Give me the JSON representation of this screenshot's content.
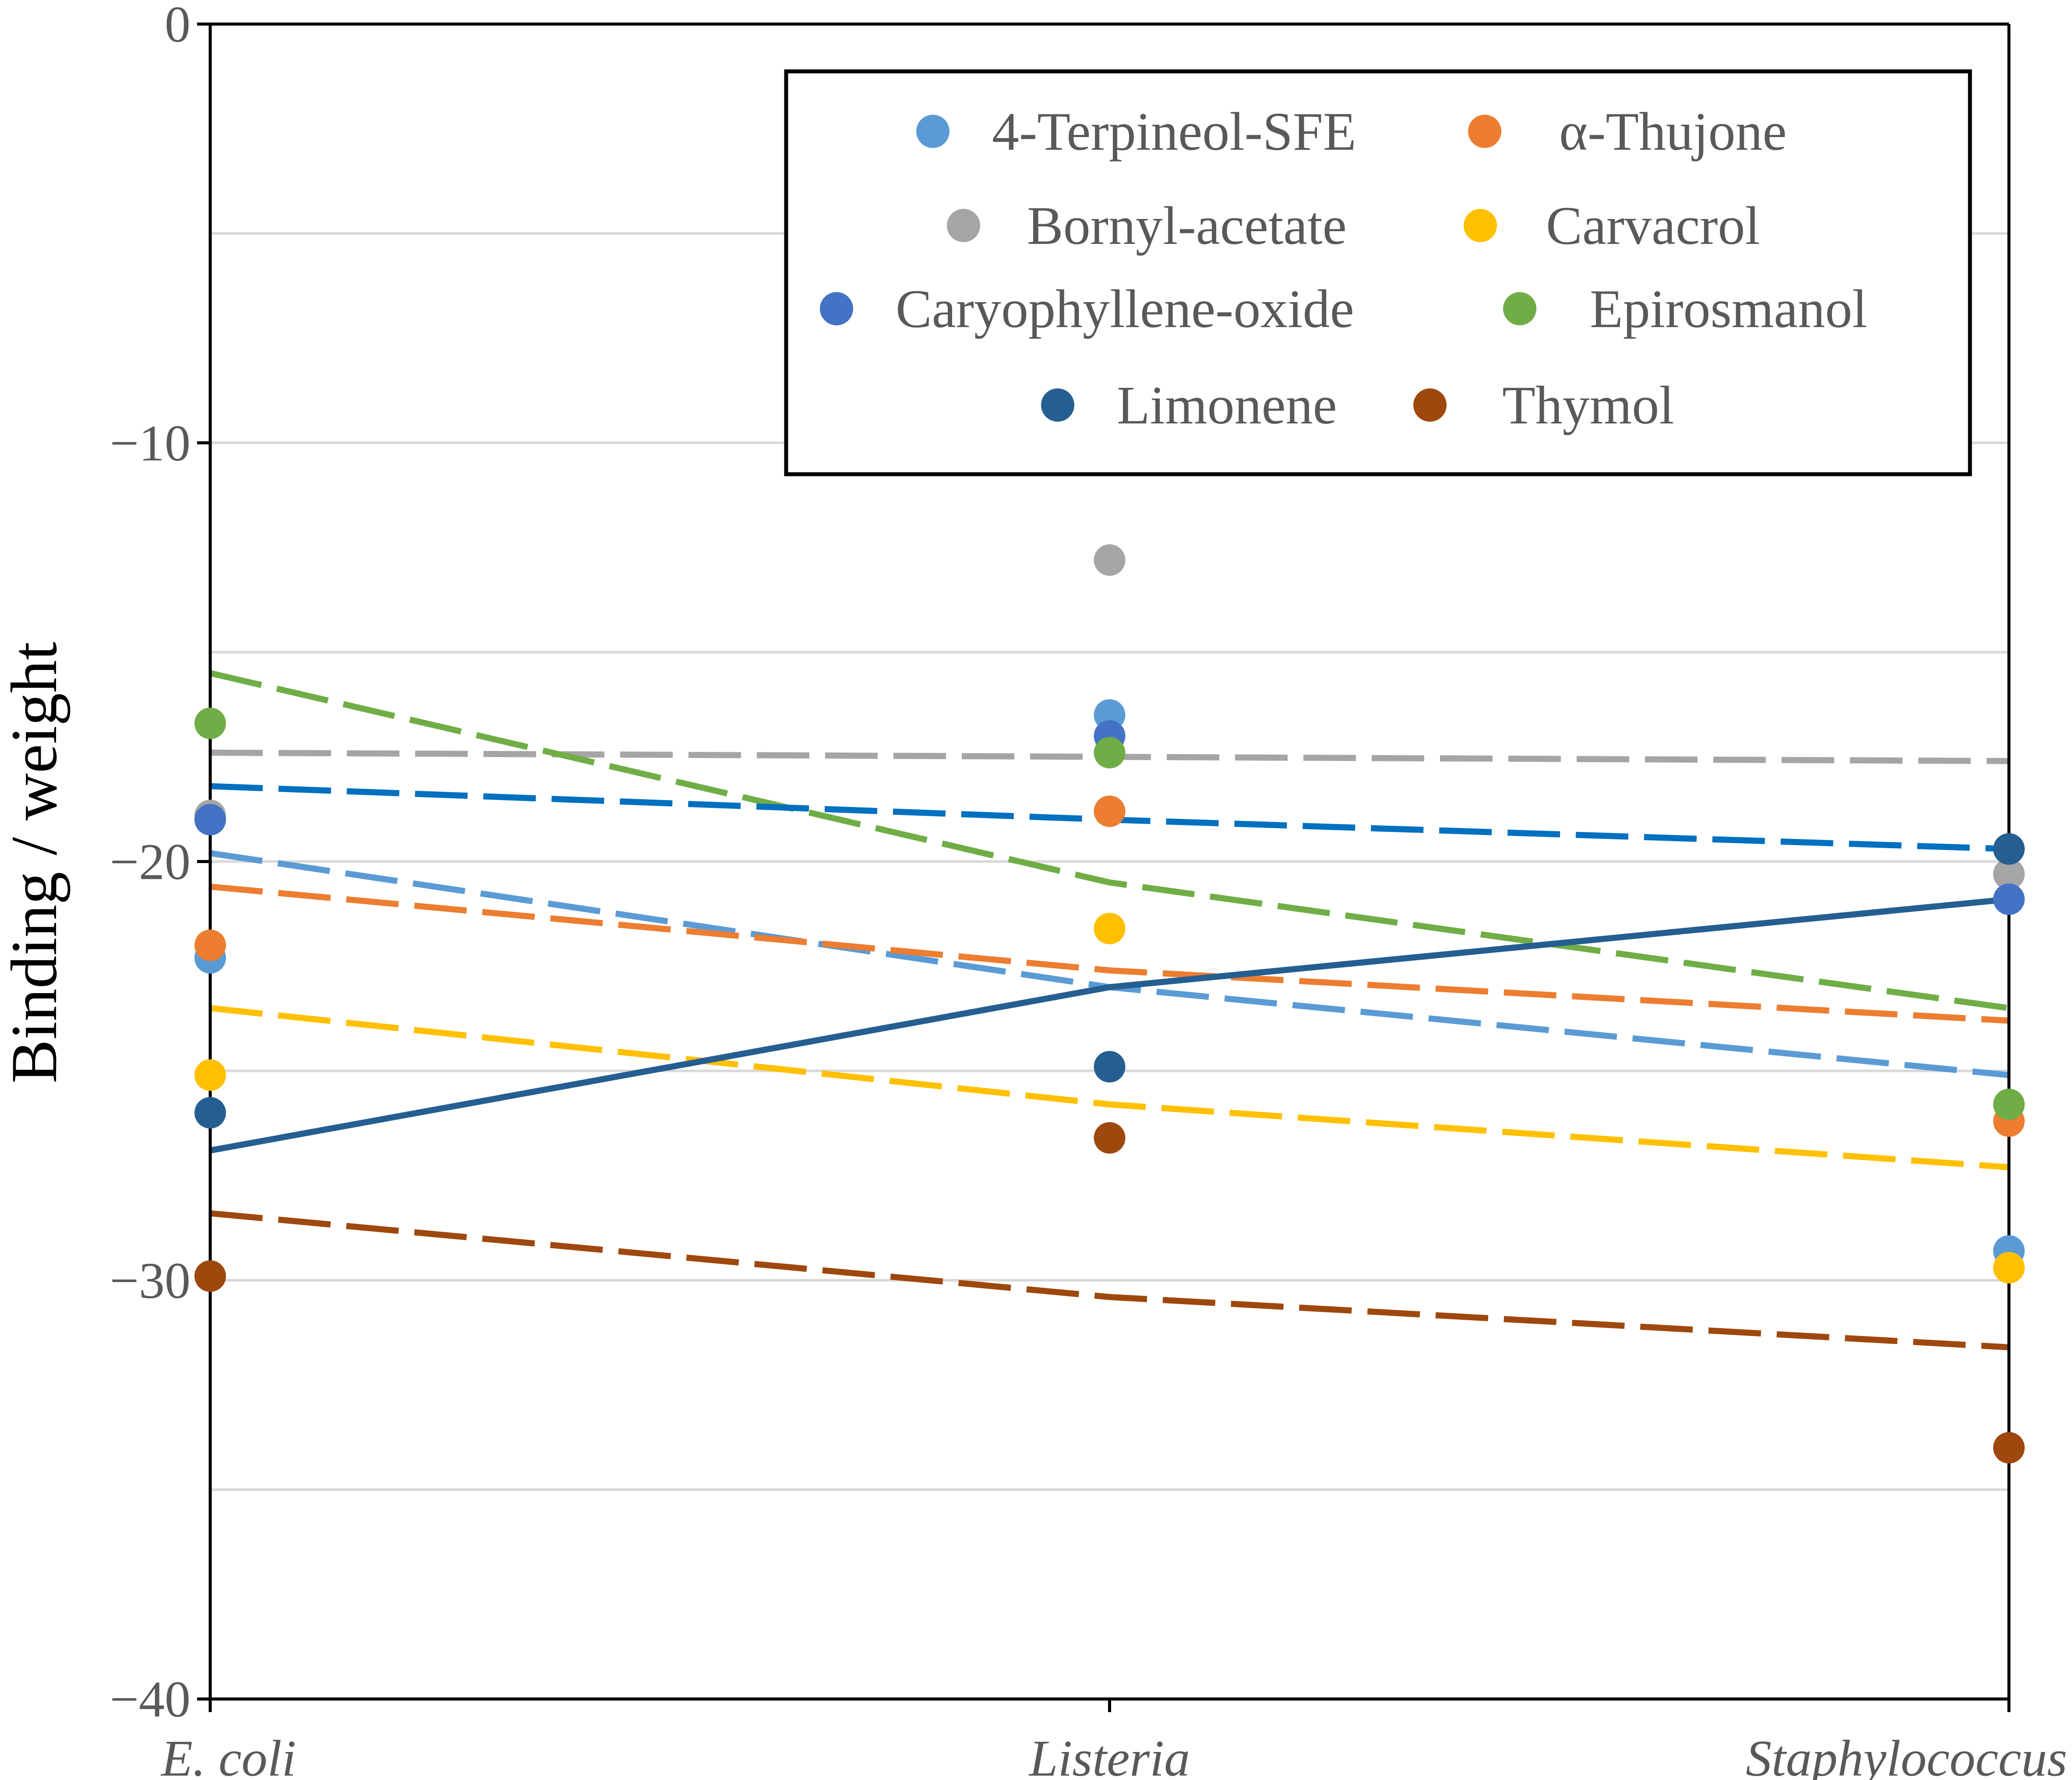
{
  "chart_data": {
    "type": "scatter",
    "title": "",
    "xlabel": "",
    "ylabel": "Binding / weight",
    "ylim": [
      -40,
      0
    ],
    "yticks": [
      0,
      -10,
      -20,
      -30,
      -40
    ],
    "ytick_labels": [
      "0",
      "−10",
      "−20",
      "−30",
      "−40"
    ],
    "grid": true,
    "grid_step": 5,
    "categories": [
      "E. coli",
      "Listeria",
      "Staphylococcus"
    ],
    "legend_position": "top-right",
    "series": [
      {
        "name": "4-Terpineol-SFE",
        "color": "#5B9BD5",
        "values": [
          -22.3,
          -16.5,
          -29.3
        ],
        "trendline": [
          -19.8,
          -23.0,
          -25.1
        ],
        "trend_style": "dashed"
      },
      {
        "name": "α-Thujone",
        "color": "#ED7D31",
        "values": [
          -22.0,
          -18.8,
          -26.2
        ],
        "trendline": [
          -20.6,
          -22.6,
          -23.8
        ],
        "trend_style": "dashed"
      },
      {
        "name": "Bornyl-acetate",
        "color": "#A5A5A5",
        "values": [
          -18.9,
          -12.8,
          -20.3
        ],
        "trendline": [
          -17.4,
          -17.5,
          -17.6
        ],
        "trend_style": "dashed"
      },
      {
        "name": "Carvacrol",
        "color": "#FFC000",
        "values": [
          -25.1,
          -21.6,
          -29.7
        ],
        "trendline": [
          -23.5,
          -25.8,
          -27.3
        ],
        "trend_style": "dashed"
      },
      {
        "name": "Caryophyllene-oxide",
        "color": "#4472C4",
        "values": [
          -19.0,
          -17.0,
          -20.9
        ],
        "trendline": null,
        "trend_style": "none"
      },
      {
        "name": "Epirosmanol",
        "color": "#70AD47",
        "values": [
          -16.7,
          -17.4,
          -25.8
        ],
        "trendline": [
          -15.5,
          -20.5,
          -23.5
        ],
        "trend_style": "dashed"
      },
      {
        "name": "Limonene",
        "color": "#255E91",
        "values": [
          -26.0,
          -24.9,
          -19.7
        ],
        "trendline": [
          -26.9,
          -23.0,
          -20.9
        ],
        "trend_style": "solid"
      },
      {
        "name": "Thymol",
        "color": "#9E480E",
        "values": [
          -29.9,
          -26.6,
          -34.0
        ],
        "trendline": [
          -28.4,
          -30.4,
          -31.6
        ],
        "trend_style": "dashed"
      }
    ],
    "extra_trendlines": [
      {
        "color": "#0070C0",
        "values": [
          -18.2,
          -19.0,
          -19.7
        ],
        "trend_style": "dashed"
      }
    ]
  }
}
